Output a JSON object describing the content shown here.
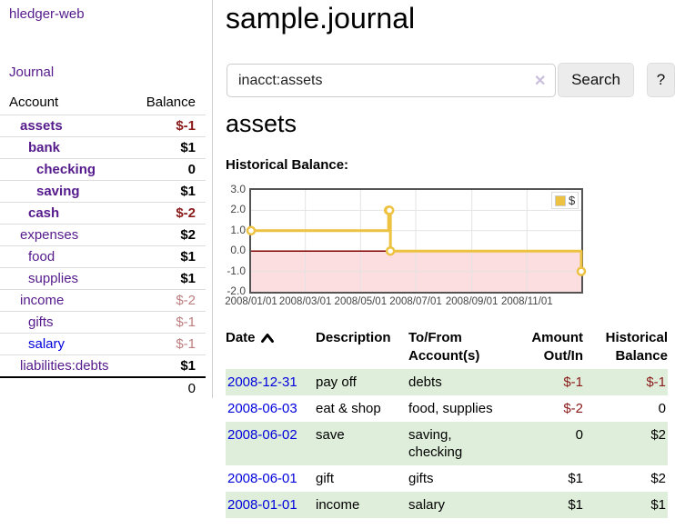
{
  "app": {
    "title": "hledger-web",
    "nav_journal": "Journal"
  },
  "sidebar": {
    "header": {
      "account": "Account",
      "balance": "Balance"
    },
    "accounts": [
      {
        "name": "assets",
        "depth": 1,
        "balance": "$-1",
        "neg": true,
        "bold": true
      },
      {
        "name": "bank",
        "depth": 2,
        "balance": "$1",
        "neg": false,
        "bold": true
      },
      {
        "name": "checking",
        "depth": 3,
        "balance": "0",
        "neg": false,
        "bold": true
      },
      {
        "name": "saving",
        "depth": 3,
        "balance": "$1",
        "neg": false,
        "bold": true
      },
      {
        "name": "cash",
        "depth": 2,
        "balance": "$-2",
        "neg": true,
        "bold": true
      },
      {
        "name": "expenses",
        "depth": 1,
        "balance": "$2",
        "neg": false,
        "bold": false
      },
      {
        "name": "food",
        "depth": 2,
        "balance": "$1",
        "neg": false,
        "bold": false
      },
      {
        "name": "supplies",
        "depth": 2,
        "balance": "$1",
        "neg": false,
        "bold": false
      },
      {
        "name": "income",
        "depth": 1,
        "balance": "$-2",
        "neg": true,
        "muted": true
      },
      {
        "name": "gifts",
        "depth": 2,
        "balance": "$-1",
        "neg": true,
        "muted": true
      },
      {
        "name": "salary",
        "depth": 2,
        "balance": "$-1",
        "neg": true,
        "muted": true,
        "unvisited": true
      },
      {
        "name": "liabilities:debts",
        "depth": 1,
        "balance": "$1",
        "neg": false,
        "bold": false
      }
    ],
    "total": "0"
  },
  "header": {
    "title": "sample.journal"
  },
  "search": {
    "value": "inacct:assets",
    "clear_icon": "✕",
    "button_label": "Search",
    "help_label": "?"
  },
  "account_page": {
    "title": "assets",
    "chart_label": "Historical Balance:"
  },
  "chart_data": {
    "type": "line",
    "title": "Historical Balance",
    "style": "step",
    "series": [
      {
        "name": "$",
        "color": "#edc240",
        "points": [
          [
            "2008-01-01",
            1
          ],
          [
            "2008-06-01",
            2
          ],
          [
            "2008-06-02",
            2
          ],
          [
            "2008-06-03",
            0
          ],
          [
            "2008-12-31",
            -1
          ]
        ]
      }
    ],
    "ylim": [
      -2,
      3
    ],
    "yticks": [
      "3.0",
      "2.0",
      "1.0",
      "0.0",
      "-1.0",
      "-2.0"
    ],
    "xticks": [
      "2008/01/01",
      "2008/03/01",
      "2008/05/01",
      "2008/07/01",
      "2008/09/01",
      "2008/11/01"
    ],
    "xrange": [
      "2008-01-01",
      "2008-12-31"
    ],
    "grid": true,
    "legend_position": "top-right",
    "negative_region_color": "#fcdde0",
    "zero_line_color": "#800000",
    "grid_color": "#e3e3e3",
    "border_color": "#545454"
  },
  "register": {
    "columns": [
      {
        "lines": [
          "Date"
        ],
        "align": "left",
        "sorted": "asc"
      },
      {
        "lines": [
          "Description"
        ],
        "align": "left"
      },
      {
        "lines": [
          "To/From",
          "Account(s)"
        ],
        "align": "left"
      },
      {
        "lines": [
          "Amount",
          "Out/In"
        ],
        "align": "right"
      },
      {
        "lines": [
          "Historical",
          "Balance"
        ],
        "align": "right"
      }
    ],
    "rows": [
      {
        "date": "2008-12-31",
        "description": "pay off",
        "accounts": "debts",
        "amount": "$-1",
        "amount_neg": true,
        "balance": "$-1",
        "balance_neg": true
      },
      {
        "date": "2008-06-03",
        "description": "eat & shop",
        "accounts": "food, supplies",
        "amount": "$-2",
        "amount_neg": true,
        "balance": "0",
        "balance_neg": false
      },
      {
        "date": "2008-06-02",
        "description": "save",
        "accounts": "saving, checking",
        "amount": "0",
        "amount_neg": false,
        "balance": "$2",
        "balance_neg": false
      },
      {
        "date": "2008-06-01",
        "description": "gift",
        "accounts": "gifts",
        "amount": "$1",
        "amount_neg": false,
        "balance": "$2",
        "balance_neg": false
      },
      {
        "date": "2008-01-01",
        "description": "income",
        "accounts": "salary",
        "amount": "$1",
        "amount_neg": false,
        "balance": "$1",
        "balance_neg": false
      }
    ]
  }
}
